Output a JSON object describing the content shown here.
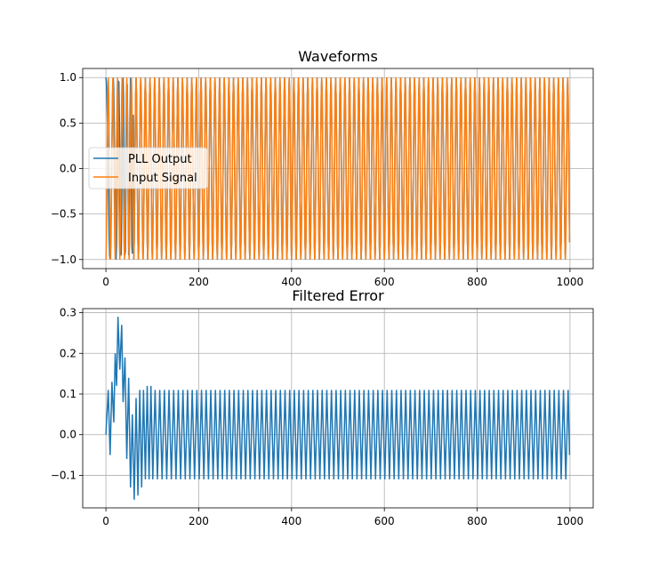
{
  "chart_data": [
    {
      "type": "line",
      "title": "Waveforms",
      "xlabel": "",
      "ylabel": "",
      "xlim": [
        -50,
        1050
      ],
      "ylim": [
        -1.1,
        1.1
      ],
      "xticks": [
        0,
        200,
        400,
        600,
        800,
        1000
      ],
      "xtick_labels": [
        "0",
        "200",
        "400",
        "600",
        "800",
        "1000"
      ],
      "yticks": [
        -1.0,
        -0.5,
        0.0,
        0.5,
        1.0
      ],
      "ytick_labels": [
        "−1.0",
        "−0.5",
        "0.0",
        "0.5",
        "1.0"
      ],
      "grid": true,
      "legend": {
        "placement": "center-left",
        "entries": [
          "PLL Output",
          "Input Signal"
        ]
      },
      "series": [
        {
          "name": "PLL Output",
          "color": "#1f77b4",
          "description_samples": "cosine locking onto input; early cycles irregular then coincides with Input Signal",
          "x_range": [
            0,
            999
          ],
          "amplitude": 1.0,
          "period": 10,
          "lock_sample": 60
        },
        {
          "name": "Input Signal",
          "color": "#ff7f0e",
          "x_range": [
            0,
            999
          ],
          "amplitude": 1.0,
          "period": 10
        }
      ]
    },
    {
      "type": "line",
      "title": "Filtered Error",
      "xlabel": "",
      "ylabel": "",
      "xlim": [
        -50,
        1050
      ],
      "ylim": [
        -0.18,
        0.31
      ],
      "xticks": [
        0,
        200,
        400,
        600,
        800,
        1000
      ],
      "xtick_labels": [
        "0",
        "200",
        "400",
        "600",
        "800",
        "1000"
      ],
      "yticks": [
        -0.1,
        0.0,
        0.1,
        0.2,
        0.3
      ],
      "ytick_labels": [
        "−0.1",
        "0.0",
        "0.1",
        "0.2",
        "0.3"
      ],
      "grid": true,
      "series": [
        {
          "color": "#1f77b4",
          "x_range": [
            0,
            999
          ],
          "period": 10,
          "steady_high": 0.11,
          "steady_low": -0.11,
          "transient_peaks": [
            [
              0,
              0.0
            ],
            [
              5,
              0.11
            ],
            [
              9,
              -0.05
            ],
            [
              13,
              0.13
            ],
            [
              17,
              0.03
            ],
            [
              20,
              0.2
            ],
            [
              23,
              0.12
            ],
            [
              26,
              0.29
            ],
            [
              30,
              0.16
            ],
            [
              34,
              0.27
            ],
            [
              37,
              0.08
            ],
            [
              41,
              0.19
            ],
            [
              45,
              -0.06
            ],
            [
              49,
              0.14
            ],
            [
              53,
              -0.13
            ],
            [
              57,
              0.05
            ],
            [
              61,
              -0.16
            ],
            [
              65,
              0.09
            ],
            [
              69,
              -0.15
            ],
            [
              73,
              0.11
            ],
            [
              77,
              -0.13
            ],
            [
              81,
              0.11
            ],
            [
              85,
              -0.11
            ],
            [
              89,
              0.12
            ],
            [
              93,
              -0.11
            ],
            [
              97,
              0.12
            ],
            [
              101,
              -0.11
            ]
          ]
        }
      ]
    }
  ]
}
